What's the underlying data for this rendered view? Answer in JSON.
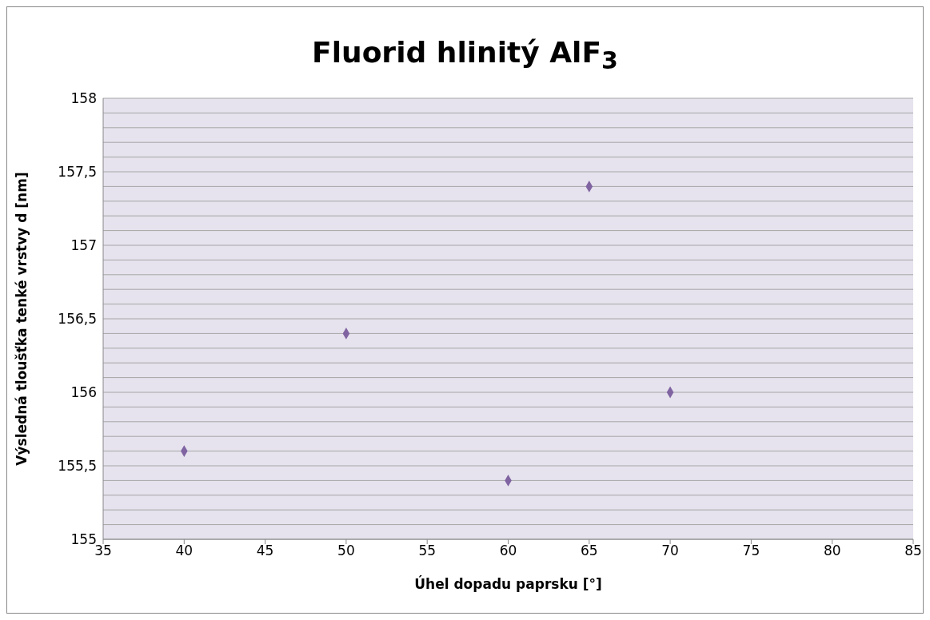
{
  "chart_data": {
    "type": "scatter",
    "title": "Fluorid hlinitý AlF$_{3}$",
    "xlabel": "Úhel dopadu paprsku [°]",
    "ylabel": "Výsledná tloušťka tenké vrstvy d [nm]",
    "x": [
      40,
      50,
      60,
      65,
      70
    ],
    "series": [
      {
        "color": "#8064a2",
        "values": [
          155.6,
          156.4,
          155.4,
          157.4,
          156.0
        ]
      }
    ],
    "xlim": [
      35,
      85
    ],
    "xticks": [
      35,
      40,
      45,
      50,
      55,
      60,
      65,
      70,
      75,
      80,
      85
    ],
    "ylim": [
      155,
      158
    ],
    "yticks": [
      155,
      {
        "value": 155.1,
        "label": null
      },
      {
        "value": 155.2,
        "label": null
      },
      {
        "value": 155.3,
        "label": null
      },
      {
        "value": 155.4,
        "label": null
      },
      {
        "value": 155.5,
        "label": "155,5"
      },
      {
        "value": 155.6,
        "label": null
      },
      {
        "value": 155.7,
        "label": null
      },
      {
        "value": 155.8,
        "label": null
      },
      {
        "value": 155.9,
        "label": null
      },
      156,
      {
        "value": 156.1,
        "label": null
      },
      {
        "value": 156.2,
        "label": null
      },
      {
        "value": 156.3,
        "label": null
      },
      {
        "value": 156.4,
        "label": null
      },
      {
        "value": 156.5,
        "label": "156,5"
      },
      {
        "value": 156.6,
        "label": null
      },
      {
        "value": 156.7,
        "label": null
      },
      {
        "value": 156.8,
        "label": null
      },
      {
        "value": 156.9,
        "label": null
      },
      157,
      {
        "value": 157.1,
        "label": null
      },
      {
        "value": 157.2,
        "label": null
      },
      {
        "value": 157.3,
        "label": null
      },
      {
        "value": 157.4,
        "label": null
      },
      {
        "value": 157.5,
        "label": "157,5"
      },
      {
        "value": 157.6,
        "label": null
      },
      {
        "value": 157.7,
        "label": null
      },
      {
        "value": 157.8,
        "label": null
      },
      {
        "value": 157.9,
        "label": null
      },
      158
    ],
    "grid": "y",
    "legend": false,
    "marker": "diamond"
  }
}
